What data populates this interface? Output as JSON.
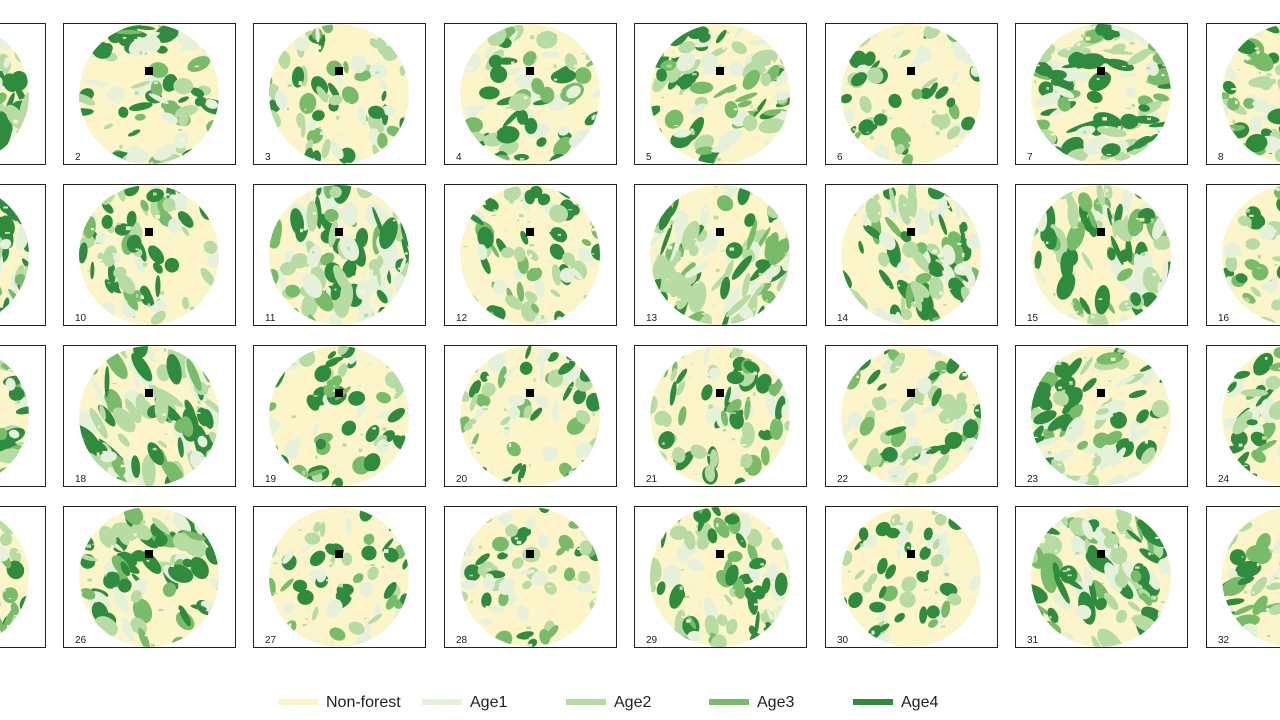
{
  "rows": [
    [
      "2",
      "3",
      "4",
      "5",
      "6",
      "7",
      "8"
    ],
    [
      "10",
      "11",
      "12",
      "13",
      "14",
      "15",
      "16"
    ],
    [
      "18",
      "19",
      "20",
      "21",
      "22",
      "23",
      "24"
    ],
    [
      "26",
      "27",
      "28",
      "29",
      "30",
      "31",
      "32"
    ]
  ],
  "legend": [
    {
      "name": "Non-forest",
      "color": "#fcf5c9"
    },
    {
      "name": "Age1",
      "color": "#e6f1dc"
    },
    {
      "name": "Age2",
      "color": "#b6dba3"
    },
    {
      "name": "Age3",
      "color": "#78bc69"
    },
    {
      "name": "Age4",
      "color": "#2f8b3d"
    }
  ]
}
